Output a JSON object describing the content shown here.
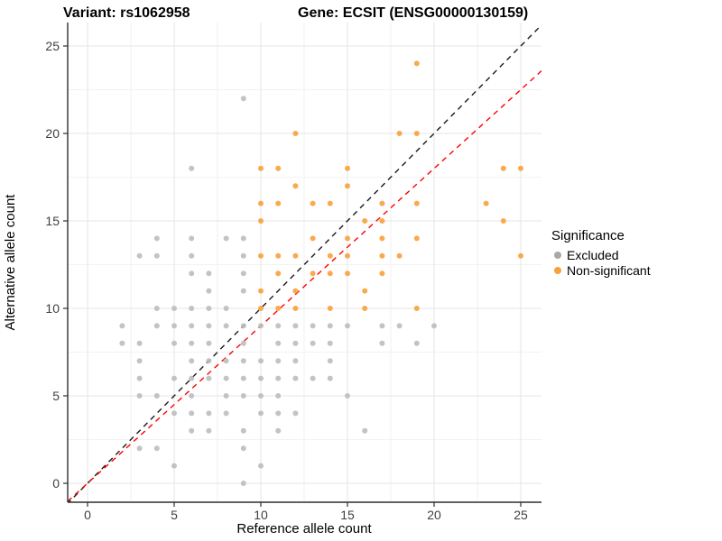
{
  "titles": {
    "left": "Variant: rs1062958",
    "right": "Gene: ECSIT (ENSG00000130159)"
  },
  "legend": {
    "title": "Significance",
    "items": [
      {
        "label": "Excluded",
        "color": "#a8a8a8"
      },
      {
        "label": "Non-significant",
        "color": "#f8a13c"
      }
    ]
  },
  "chart_data": {
    "type": "scatter",
    "title_left": "Variant: rs1062958",
    "title_right": "Gene: ECSIT (ENSG00000130159)",
    "xlabel": "Reference allele count",
    "ylabel": "Alternative allele count",
    "xlim": [
      -1.25,
      26.25
    ],
    "ylim": [
      -1.25,
      26.25
    ],
    "x_ticks": [
      0,
      5,
      10,
      15,
      20,
      25
    ],
    "y_ticks": [
      0,
      5,
      10,
      15,
      20,
      25
    ],
    "grid": true,
    "legend_position": "right",
    "series": [
      {
        "name": "Excluded",
        "color": "#bdbdbd",
        "points": [
          [
            9,
            22
          ],
          [
            6,
            18
          ],
          [
            4,
            14
          ],
          [
            6,
            14
          ],
          [
            8,
            14
          ],
          [
            9,
            14
          ],
          [
            3,
            13
          ],
          [
            4,
            13
          ],
          [
            6,
            13
          ],
          [
            9,
            13
          ],
          [
            6,
            12
          ],
          [
            7,
            12
          ],
          [
            9,
            12
          ],
          [
            7,
            11
          ],
          [
            9,
            11
          ],
          [
            4,
            10
          ],
          [
            5,
            10
          ],
          [
            6,
            10
          ],
          [
            7,
            10
          ],
          [
            8,
            10
          ],
          [
            2,
            9
          ],
          [
            4,
            9
          ],
          [
            5,
            9
          ],
          [
            6,
            9
          ],
          [
            7,
            9
          ],
          [
            8,
            9
          ],
          [
            9,
            9
          ],
          [
            10,
            9
          ],
          [
            11,
            9
          ],
          [
            12,
            9
          ],
          [
            13,
            9
          ],
          [
            14,
            9
          ],
          [
            15,
            9
          ],
          [
            17,
            9
          ],
          [
            18,
            9
          ],
          [
            20,
            9
          ],
          [
            2,
            8
          ],
          [
            3,
            8
          ],
          [
            5,
            8
          ],
          [
            6,
            8
          ],
          [
            7,
            8
          ],
          [
            9,
            8
          ],
          [
            11,
            8
          ],
          [
            12,
            8
          ],
          [
            13,
            8
          ],
          [
            14,
            8
          ],
          [
            17,
            8
          ],
          [
            19,
            8
          ],
          [
            3,
            7
          ],
          [
            6,
            7
          ],
          [
            7,
            7
          ],
          [
            8,
            7
          ],
          [
            9,
            7
          ],
          [
            10,
            7
          ],
          [
            11,
            7
          ],
          [
            12,
            7
          ],
          [
            14,
            7
          ],
          [
            3,
            6
          ],
          [
            5,
            6
          ],
          [
            6,
            6
          ],
          [
            7,
            6
          ],
          [
            8,
            6
          ],
          [
            9,
            6
          ],
          [
            10,
            6
          ],
          [
            11,
            6
          ],
          [
            12,
            6
          ],
          [
            13,
            6
          ],
          [
            14,
            6
          ],
          [
            3,
            5
          ],
          [
            4,
            5
          ],
          [
            6,
            5
          ],
          [
            8,
            5
          ],
          [
            9,
            5
          ],
          [
            10,
            5
          ],
          [
            11,
            5
          ],
          [
            15,
            5
          ],
          [
            5,
            4
          ],
          [
            6,
            4
          ],
          [
            7,
            4
          ],
          [
            8,
            4
          ],
          [
            10,
            4
          ],
          [
            11,
            4
          ],
          [
            12,
            4
          ],
          [
            6,
            3
          ],
          [
            7,
            3
          ],
          [
            9,
            3
          ],
          [
            11,
            3
          ],
          [
            16,
            3
          ],
          [
            3,
            2
          ],
          [
            4,
            2
          ],
          [
            9,
            2
          ],
          [
            5,
            1
          ],
          [
            10,
            1
          ],
          [
            9,
            0
          ]
        ]
      },
      {
        "name": "Non-significant",
        "color": "#f8a13c",
        "points": [
          [
            19,
            24
          ],
          [
            12,
            20
          ],
          [
            18,
            20
          ],
          [
            19,
            20
          ],
          [
            10,
            18
          ],
          [
            11,
            18
          ],
          [
            15,
            18
          ],
          [
            24,
            18
          ],
          [
            25,
            18
          ],
          [
            12,
            17
          ],
          [
            15,
            17
          ],
          [
            10,
            16
          ],
          [
            11,
            16
          ],
          [
            13,
            16
          ],
          [
            14,
            16
          ],
          [
            17,
            16
          ],
          [
            19,
            16
          ],
          [
            23,
            16
          ],
          [
            10,
            15
          ],
          [
            16,
            15
          ],
          [
            17,
            15
          ],
          [
            24,
            15
          ],
          [
            13,
            14
          ],
          [
            15,
            14
          ],
          [
            17,
            14
          ],
          [
            19,
            14
          ],
          [
            10,
            13
          ],
          [
            11,
            13
          ],
          [
            12,
            13
          ],
          [
            14,
            13
          ],
          [
            15,
            13
          ],
          [
            17,
            13
          ],
          [
            18,
            13
          ],
          [
            25,
            13
          ],
          [
            11,
            12
          ],
          [
            13,
            12
          ],
          [
            14,
            12
          ],
          [
            15,
            12
          ],
          [
            17,
            12
          ],
          [
            10,
            11
          ],
          [
            12,
            11
          ],
          [
            16,
            11
          ],
          [
            10,
            10
          ],
          [
            11,
            10
          ],
          [
            12,
            10
          ],
          [
            14,
            10
          ],
          [
            16,
            10
          ],
          [
            19,
            10
          ]
        ]
      }
    ],
    "reference_lines": [
      {
        "name": "identity-line",
        "color": "#1a1a1a",
        "style": "dashed",
        "slope": 1.0,
        "intercept": 0
      },
      {
        "name": "fit-line",
        "color": "#ff0000",
        "style": "dashed",
        "slope": 0.9,
        "intercept": 0
      }
    ]
  }
}
